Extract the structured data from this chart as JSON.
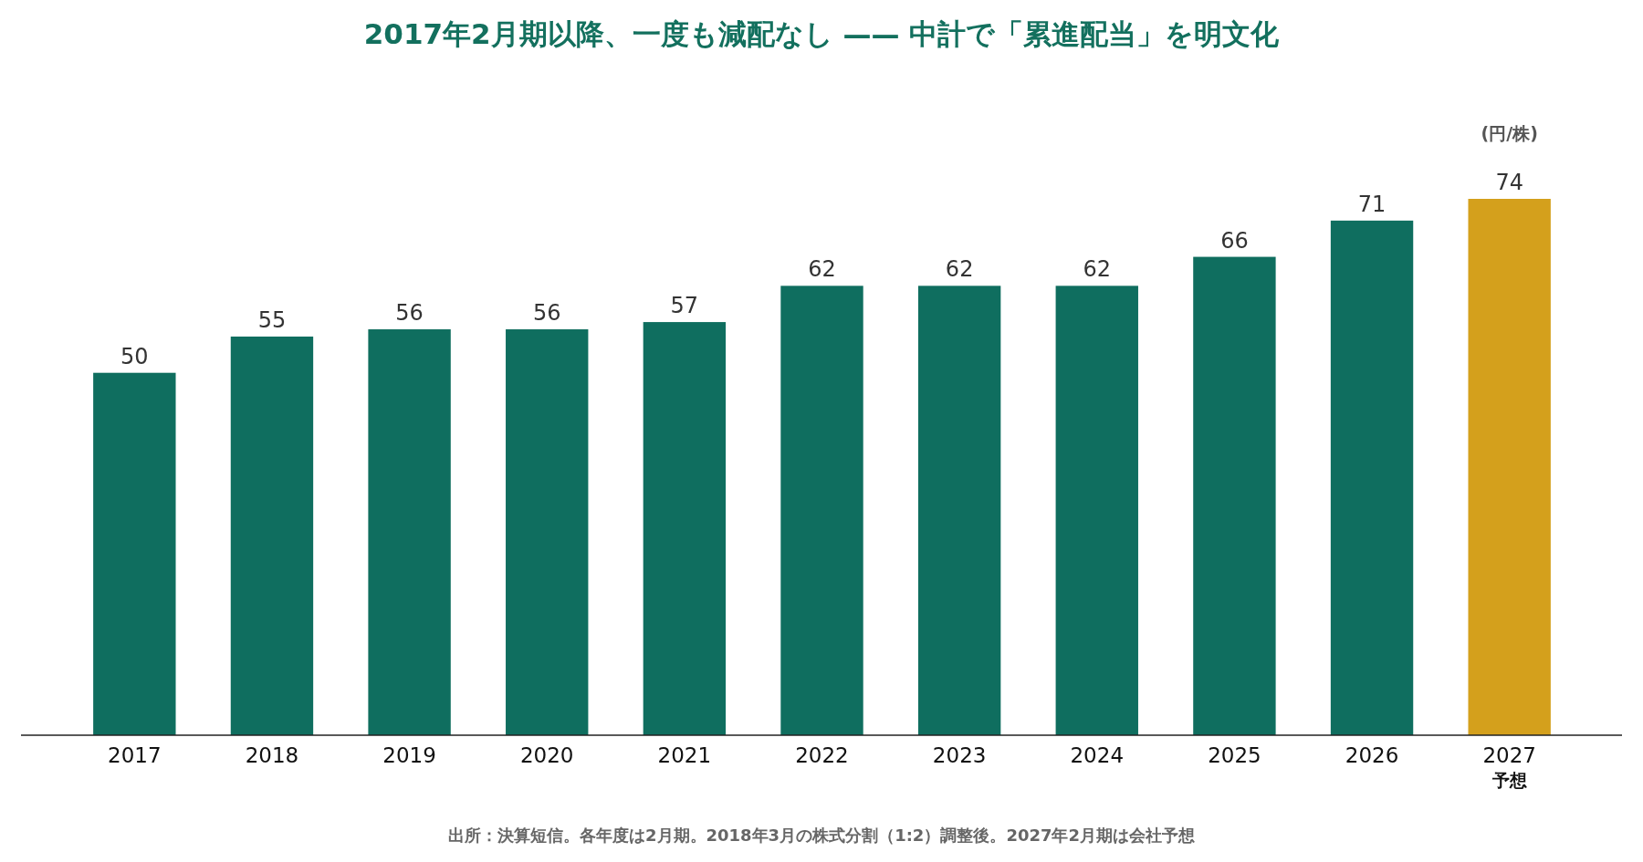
{
  "chart_data": {
    "type": "bar",
    "title": "2017年2月期以降、一度も減配なし —— 中計で「累進配当」を明文化",
    "ylabel": "(円/株)",
    "categories": [
      "2017",
      "2018",
      "2019",
      "2020",
      "2021",
      "2022",
      "2023",
      "2024",
      "2025",
      "2026",
      "2027\n予想"
    ],
    "values": [
      50,
      55,
      56,
      56,
      57,
      62,
      62,
      62,
      66,
      71,
      74
    ],
    "colors": [
      "#0f6e5f",
      "#0f6e5f",
      "#0f6e5f",
      "#0f6e5f",
      "#0f6e5f",
      "#0f6e5f",
      "#0f6e5f",
      "#0f6e5f",
      "#0f6e5f",
      "#0f6e5f",
      "#d4a01c"
    ],
    "tick_labels": "x",
    "data_labels": true,
    "annotations": [
      "出所：決算短信。各年度は2月期。2018年3月の株式分割（1:2）調整後。2027年2月期は会社予想"
    ]
  }
}
